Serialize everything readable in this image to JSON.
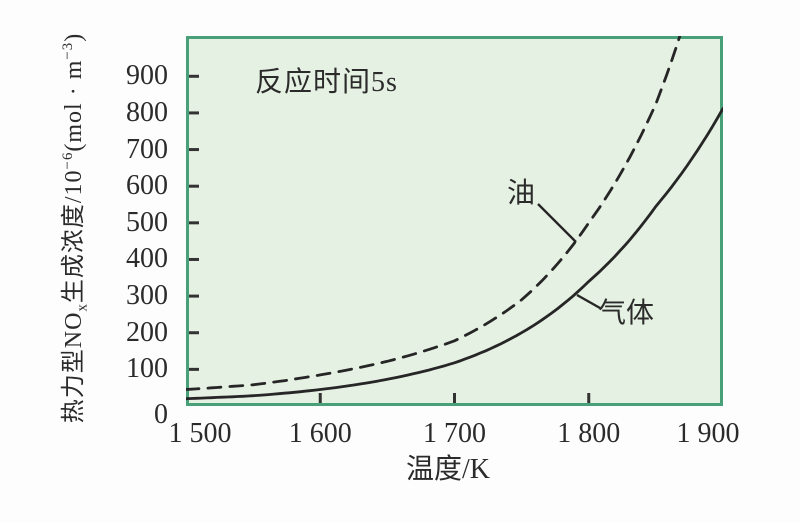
{
  "colors": {
    "page_bg": "#fdfdfd",
    "plot_bg": "#e5f1e2",
    "plot_border": "#47a077",
    "curve": "#262626",
    "tick": "#333333",
    "text": "#2b2b2b"
  },
  "annotation": {
    "reaction_time": "反应时间5s"
  },
  "axes": {
    "x_title": "温度/K",
    "y_title_segments": [
      {
        "text": "热力型NO"
      },
      {
        "text": "x",
        "style": "sub"
      },
      {
        "text": "生成浓度/10"
      },
      {
        "text": "−6",
        "style": "sup"
      },
      {
        "text": "(mol · m"
      },
      {
        "text": "−3",
        "style": "sup"
      },
      {
        "text": ")"
      }
    ],
    "x_tick_labels": [
      "1 500",
      "1 600",
      "1 700",
      "1 800",
      "1 900"
    ],
    "y_tick_labels": [
      "0",
      "100",
      "200",
      "300",
      "400",
      "500",
      "600",
      "700",
      "800",
      "900"
    ]
  },
  "series_labels": {
    "oil": "油",
    "gas": "气体"
  },
  "chart_data": {
    "type": "line",
    "annotation": "反应时间5s",
    "xlabel": "温度/K",
    "ylabel": "热力型NOx生成浓度/10^-6(mol·m^-3)",
    "value_units": "10^-6 mol·m^-3",
    "xlim": [
      1500,
      1900
    ],
    "ylim": [
      0,
      1010
    ],
    "x_ticks": [
      1500,
      1600,
      1700,
      1800,
      1900
    ],
    "y_ticks": [
      0,
      100,
      200,
      300,
      400,
      500,
      600,
      700,
      800,
      900
    ],
    "grid": false,
    "legend": "inline-labels",
    "series": [
      {
        "name": "油",
        "line_style": "dashed",
        "points": [
          [
            1500,
            45
          ],
          [
            1550,
            58
          ],
          [
            1600,
            85
          ],
          [
            1650,
            122
          ],
          [
            1700,
            178
          ],
          [
            1750,
            290
          ],
          [
            1800,
            500
          ],
          [
            1850,
            825
          ],
          [
            1870,
            1035
          ]
        ]
      },
      {
        "name": "气体",
        "line_style": "solid",
        "points": [
          [
            1500,
            20
          ],
          [
            1550,
            28
          ],
          [
            1600,
            45
          ],
          [
            1650,
            73
          ],
          [
            1700,
            118
          ],
          [
            1750,
            200
          ],
          [
            1800,
            340
          ],
          [
            1850,
            545
          ],
          [
            1900,
            812
          ]
        ]
      }
    ]
  }
}
